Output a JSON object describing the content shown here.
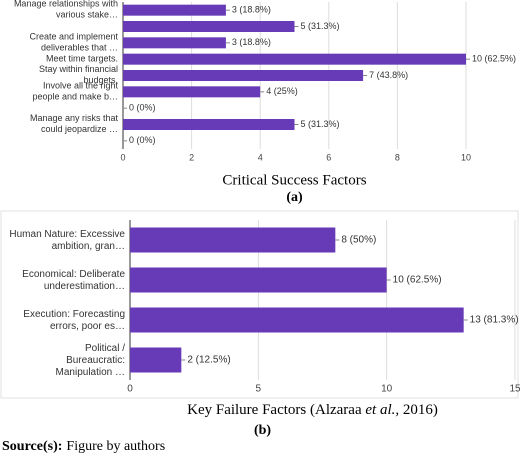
{
  "chart_data": [
    {
      "type": "barh",
      "categories": [
        "Manage relationships with various stake…",
        null,
        "Create and implement deliverables that …",
        "Meet time targets.",
        "Stay within financial budgets.",
        "Involve all the right people and make b…",
        null,
        "Manage any risks that could jeopardize …",
        null
      ],
      "values": [
        3,
        5,
        3,
        10,
        7,
        4,
        0,
        5,
        0
      ],
      "value_labels": [
        "3 (18.8%)",
        "5 (31.3%)",
        "3 (18.8%)",
        "10 (62.5%)",
        "7 (43.8%)",
        "4 (25%)",
        "0 (0%)",
        "5 (31.3%)",
        "0 (0%)"
      ],
      "color": "#673ab7",
      "xlim": [
        0,
        10
      ],
      "xticks": [
        0,
        2,
        4,
        6,
        8,
        10
      ],
      "grid": true,
      "x_label": "Critical Success Factors",
      "panel_label": "(a)"
    },
    {
      "type": "barh",
      "categories": [
        "Human Nature: Excessive ambition, gran…",
        "Economical: Deliberate underestimation…",
        "Execution: Forecasting errors, poor es…",
        "Political / Bureaucratic: Manipulation …"
      ],
      "values": [
        8,
        10,
        13,
        2
      ],
      "value_labels": [
        "8 (50%)",
        "10 (62.5%)",
        "13 (81.3%)",
        "2 (12.5%)"
      ],
      "color": "#673ab7",
      "xlim": [
        0,
        15
      ],
      "xticks": [
        0,
        5,
        10,
        15
      ],
      "grid": true,
      "x_label_parts": [
        "Key Failure Factors (Alzaraa ",
        "et al.,",
        " 2016)"
      ],
      "panel_label": "(b)"
    }
  ],
  "source": {
    "label": "Source(s):",
    "text": "Figure by authors"
  }
}
